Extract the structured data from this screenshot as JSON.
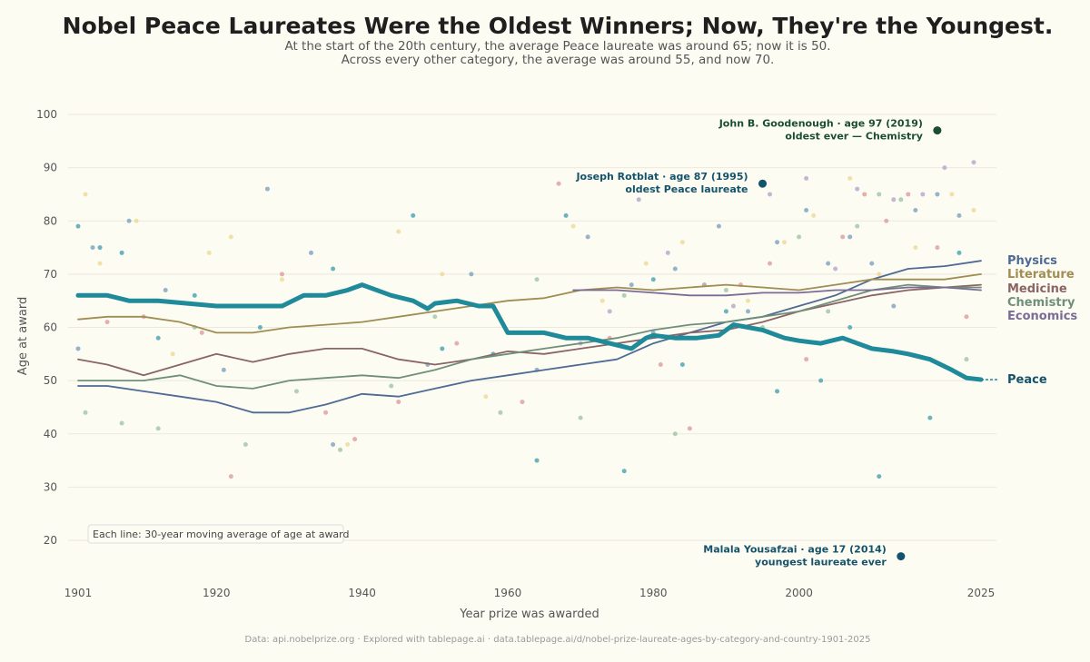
{
  "title": "Nobel Peace Laureates Were the Oldest Winners; Now, They're the Youngest.",
  "subtitle_line1": "At the start of the 20th century, the average Peace laureate was around 65; now it is 50.",
  "subtitle_line2": "Across every other category, the average was around 55, and now 70.",
  "source": "Data: api.nobelprize.org  ·  Explored with tablepage.ai  ·  data.tablepage.ai/d/nobel-prize-laureate-ages-by-category-and-country-1901-2025",
  "chart_data": {
    "type": "line",
    "xlabel": "Year prize was awarded",
    "ylabel": "Age at award",
    "xlim": [
      1901,
      2025
    ],
    "ylim": [
      13,
      101
    ],
    "x_ticks": [
      1901,
      1920,
      1940,
      1960,
      1980,
      2000,
      2025
    ],
    "y_ticks": [
      20,
      30,
      40,
      50,
      60,
      70,
      80,
      90,
      100
    ],
    "grid": "horizontal",
    "legend_placement": "right (direct labels)",
    "note": "Each line: 30-year moving average of age at award",
    "series": [
      {
        "name": "Physics",
        "color": "#4e6a95",
        "x": [
          1901,
          1905,
          1910,
          1915,
          1920,
          1925,
          1930,
          1935,
          1940,
          1945,
          1950,
          1955,
          1960,
          1965,
          1970,
          1975,
          1980,
          1985,
          1990,
          1995,
          2000,
          2005,
          2010,
          2015,
          2020,
          2025
        ],
        "y": [
          49,
          49,
          48,
          47,
          46,
          44,
          44,
          45.5,
          47.5,
          47,
          48.5,
          50,
          51,
          52,
          53,
          54,
          57,
          59,
          61,
          62,
          64,
          66,
          69,
          71,
          71.5,
          72.5
        ]
      },
      {
        "name": "Literature",
        "color": "#a08d52",
        "x": [
          1901,
          1905,
          1910,
          1915,
          1920,
          1925,
          1930,
          1935,
          1940,
          1945,
          1950,
          1955,
          1960,
          1965,
          1970,
          1975,
          1980,
          1985,
          1990,
          1995,
          2000,
          2005,
          2010,
          2015,
          2020,
          2025
        ],
        "y": [
          61.5,
          62,
          62,
          61,
          59,
          59,
          60,
          60.5,
          61,
          62,
          63,
          64,
          65,
          65.5,
          67,
          67.5,
          67,
          67.5,
          68,
          67.5,
          67,
          68,
          69,
          69,
          69,
          70
        ]
      },
      {
        "name": "Medicine",
        "color": "#8b6465",
        "x": [
          1901,
          1905,
          1910,
          1915,
          1920,
          1925,
          1930,
          1935,
          1940,
          1945,
          1950,
          1955,
          1960,
          1965,
          1970,
          1975,
          1980,
          1985,
          1990,
          1995,
          2000,
          2005,
          2010,
          2015,
          2020,
          2025
        ],
        "y": [
          54,
          53,
          51,
          53,
          55,
          53.5,
          55,
          56,
          56,
          54,
          53,
          54,
          55.5,
          55,
          56,
          57,
          58,
          59,
          59.5,
          61,
          63,
          64.5,
          66,
          67,
          67.5,
          68
        ]
      },
      {
        "name": "Chemistry",
        "color": "#6f8f7a",
        "x": [
          1901,
          1905,
          1910,
          1915,
          1920,
          1925,
          1930,
          1935,
          1940,
          1945,
          1950,
          1955,
          1960,
          1965,
          1970,
          1975,
          1980,
          1985,
          1990,
          1995,
          2000,
          2005,
          2010,
          2015,
          2020,
          2025
        ],
        "y": [
          50,
          50,
          50,
          51,
          49,
          48.5,
          50,
          50.5,
          51,
          50.5,
          52,
          54,
          55,
          56,
          57,
          58,
          59.5,
          60.5,
          61,
          62,
          63,
          65,
          67,
          68,
          67.5,
          67.5
        ]
      },
      {
        "name": "Economics",
        "color": "#7a6c95",
        "x": [
          1969,
          1975,
          1980,
          1985,
          1990,
          1995,
          2000,
          2005,
          2010,
          2015,
          2020,
          2025
        ],
        "y": [
          67,
          67,
          66.5,
          66,
          66,
          66.5,
          66.5,
          67,
          67,
          67.5,
          67.5,
          67
        ]
      },
      {
        "name": "Peace",
        "color": "#1f8a9a",
        "x": [
          1901,
          1905,
          1908,
          1912,
          1916,
          1920,
          1925,
          1929,
          1932,
          1935,
          1938,
          1940,
          1944,
          1947,
          1949,
          1950,
          1953,
          1956,
          1958,
          1960,
          1962,
          1965,
          1968,
          1971,
          1974,
          1977,
          1979,
          1980,
          1983,
          1986,
          1989,
          1991,
          1993,
          1995,
          1998,
          2000,
          2003,
          2006,
          2010,
          2013,
          2015,
          2018,
          2021,
          2023,
          2025
        ],
        "y": [
          66,
          66,
          65,
          65,
          64.5,
          64,
          64,
          64,
          66,
          66,
          67,
          68,
          66,
          65,
          63.5,
          64.5,
          65,
          64,
          64,
          59,
          59,
          59,
          58,
          58,
          57,
          56,
          58,
          58.5,
          58,
          58,
          58.5,
          60.5,
          60,
          59.5,
          58,
          57.5,
          57,
          58,
          56,
          55.5,
          55,
          54,
          52,
          50.5,
          50.2
        ]
      }
    ],
    "points": {
      "Physics": {
        "x": [
          1901,
          1903,
          1908,
          1913,
          1921,
          1927,
          1933,
          1936,
          1949,
          1955,
          1964,
          1971,
          1977,
          1980,
          1983,
          1989,
          1993,
          1997,
          2001,
          2004,
          2007,
          2010,
          2013,
          2016,
          2019,
          2022
        ],
        "y": [
          56,
          75,
          80,
          67,
          52,
          86,
          74,
          38,
          53,
          70,
          52,
          77,
          68,
          59,
          71,
          79,
          63,
          76,
          82,
          72,
          77,
          72,
          64,
          82,
          85,
          81
        ]
      },
      "Literature": {
        "x": [
          1902,
          1904,
          1909,
          1914,
          1919,
          1922,
          1929,
          1938,
          1945,
          1951,
          1957,
          1962,
          1969,
          1973,
          1979,
          1984,
          1987,
          1993,
          1998,
          2002,
          2007,
          2011,
          2016,
          2021,
          2024
        ],
        "y": [
          85,
          72,
          80,
          55,
          74,
          77,
          69,
          38,
          78,
          70,
          47,
          59,
          79,
          65,
          72,
          76,
          68,
          65,
          76,
          81,
          88,
          70,
          75,
          85,
          82
        ]
      },
      "Medicine": {
        "x": [
          1905,
          1910,
          1918,
          1922,
          1929,
          1935,
          1939,
          1945,
          1953,
          1962,
          1967,
          1974,
          1981,
          1985,
          1992,
          1996,
          2001,
          2006,
          2009,
          2012,
          2015,
          2019,
          2023
        ],
        "y": [
          61,
          62,
          59,
          32,
          70,
          44,
          39,
          46,
          57,
          46,
          87,
          58,
          53,
          41,
          68,
          72,
          54,
          77,
          85,
          80,
          85,
          75,
          62
        ]
      },
      "Chemistry": {
        "x": [
          1902,
          1907,
          1912,
          1917,
          1924,
          1931,
          1937,
          1944,
          1950,
          1959,
          1964,
          1970,
          1976,
          1983,
          1990,
          1995,
          2000,
          2004,
          2008,
          2011,
          2014,
          2019,
          2023
        ],
        "y": [
          44,
          42,
          41,
          60,
          38,
          48,
          37,
          49,
          62,
          44,
          69,
          43,
          66,
          40,
          67,
          60,
          77,
          63,
          79,
          85,
          84,
          97,
          54
        ]
      },
      "Economics": {
        "x": [
          1970,
          1974,
          1978,
          1982,
          1987,
          1991,
          1996,
          2001,
          2005,
          2008,
          2013,
          2017,
          2020,
          2024
        ],
        "y": [
          57,
          63,
          84,
          74,
          68,
          64,
          85,
          88,
          71,
          86,
          84,
          85,
          90,
          91
        ]
      },
      "Peace": {
        "x": [
          1901,
          1904,
          1907,
          1912,
          1917,
          1926,
          1933,
          1936,
          1947,
          1951,
          1958,
          1964,
          1968,
          1976,
          1980,
          1984,
          1990,
          1997,
          2003,
          2007,
          2011,
          2014,
          2018,
          2022
        ],
        "y": [
          79,
          75,
          74,
          58,
          66,
          60,
          66,
          71,
          81,
          56,
          55,
          35,
          81,
          33,
          69,
          53,
          63,
          48,
          50,
          60,
          32,
          17,
          43,
          74
        ]
      }
    },
    "annotations": [
      {
        "x": 2019,
        "y": 97,
        "line1": "John B. Goodenough · age 97 (2019)",
        "line2": "oldest ever — Chemistry",
        "color": "#1b4d33"
      },
      {
        "x": 1995,
        "y": 87,
        "line1": "Joseph Rotblat · age 87 (1995)",
        "line2": "oldest Peace laureate",
        "color": "#15526b"
      },
      {
        "x": 2014,
        "y": 17,
        "line1": "Malala Yousafzai · age 17 (2014)",
        "line2": "youngest laureate ever",
        "color": "#15526b"
      }
    ]
  }
}
